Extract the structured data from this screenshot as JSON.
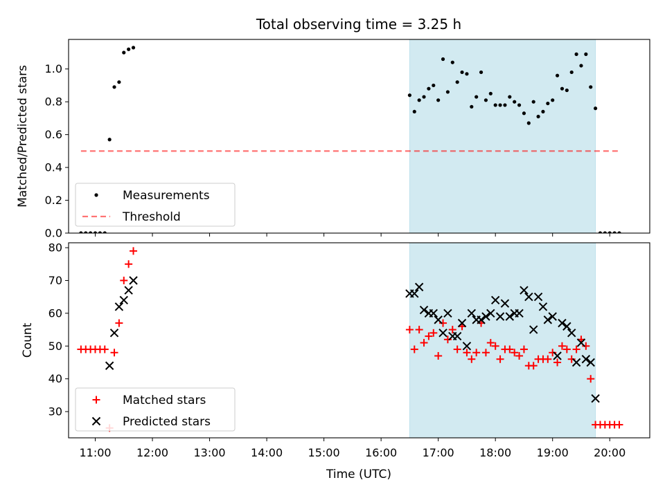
{
  "chart_data": {
    "title": "Total observing time = 3.25 h",
    "xlabel": "Time (UTC)",
    "x_ticks": [
      "11:00",
      "12:00",
      "13:00",
      "14:00",
      "15:00",
      "16:00",
      "17:00",
      "18:00",
      "19:00",
      "20:00"
    ],
    "x_range": [
      "10:32",
      "20:42"
    ],
    "observing_window": [
      "16:30",
      "19:45"
    ],
    "colors": {
      "window": "#add8e6",
      "measurement": "#000000",
      "threshold": "#ff0000",
      "matched": "#ff0000",
      "predicted": "#000000"
    },
    "panels": [
      {
        "type": "scatter",
        "ylabel": "Matched/Predicted stars",
        "ylim": [
          0,
          1.18
        ],
        "y_ticks": [
          "0.0",
          "0.2",
          "0.4",
          "0.6",
          "0.8",
          "1.0"
        ],
        "legend_placement": "lower-left",
        "series": [
          {
            "name": "Measurements",
            "marker": "dot",
            "points": [
              [
                "10:45",
                0
              ],
              [
                "10:50",
                0
              ],
              [
                "10:55",
                0
              ],
              [
                "11:00",
                0
              ],
              [
                "11:05",
                0
              ],
              [
                "11:10",
                0
              ],
              [
                "11:15",
                0.57
              ],
              [
                "11:20",
                0.89
              ],
              [
                "11:25",
                0.92
              ],
              [
                "11:30",
                1.1
              ],
              [
                "11:35",
                1.12
              ],
              [
                "11:40",
                1.13
              ],
              [
                "16:30",
                0.84
              ],
              [
                "16:35",
                0.74
              ],
              [
                "16:40",
                0.81
              ],
              [
                "16:45",
                0.83
              ],
              [
                "16:50",
                0.88
              ],
              [
                "16:55",
                0.9
              ],
              [
                "17:00",
                0.81
              ],
              [
                "17:05",
                1.06
              ],
              [
                "17:10",
                0.86
              ],
              [
                "17:15",
                1.04
              ],
              [
                "17:20",
                0.92
              ],
              [
                "17:25",
                0.98
              ],
              [
                "17:30",
                0.97
              ],
              [
                "17:35",
                0.77
              ],
              [
                "17:40",
                0.83
              ],
              [
                "17:45",
                0.98
              ],
              [
                "17:50",
                0.81
              ],
              [
                "17:55",
                0.85
              ],
              [
                "18:00",
                0.78
              ],
              [
                "18:05",
                0.78
              ],
              [
                "18:10",
                0.78
              ],
              [
                "18:15",
                0.83
              ],
              [
                "18:20",
                0.8
              ],
              [
                "18:25",
                0.78
              ],
              [
                "18:30",
                0.73
              ],
              [
                "18:35",
                0.67
              ],
              [
                "18:40",
                0.8
              ],
              [
                "18:45",
                0.71
              ],
              [
                "18:50",
                0.74
              ],
              [
                "18:55",
                0.79
              ],
              [
                "19:00",
                0.81
              ],
              [
                "19:05",
                0.96
              ],
              [
                "19:10",
                0.88
              ],
              [
                "19:15",
                0.87
              ],
              [
                "19:20",
                0.98
              ],
              [
                "19:25",
                1.09
              ],
              [
                "19:30",
                1.02
              ],
              [
                "19:35",
                1.09
              ],
              [
                "19:40",
                0.89
              ],
              [
                "19:45",
                0.76
              ],
              [
                "19:50",
                0
              ],
              [
                "19:55",
                0
              ],
              [
                "20:00",
                0
              ],
              [
                "20:05",
                0
              ],
              [
                "20:10",
                0
              ]
            ]
          },
          {
            "name": "Threshold",
            "marker": "dashed-line",
            "points": [
              [
                "10:45",
                0.5
              ],
              [
                "20:10",
                0.5
              ]
            ]
          }
        ]
      },
      {
        "type": "scatter",
        "ylabel": "Count",
        "ylim": [
          22,
          81.5
        ],
        "y_ticks": [
          "30",
          "40",
          "50",
          "60",
          "70",
          "80"
        ],
        "legend_placement": "lower-left",
        "series": [
          {
            "name": "Matched stars",
            "marker": "plus",
            "points": [
              [
                "10:45",
                49
              ],
              [
                "10:50",
                49
              ],
              [
                "10:55",
                49
              ],
              [
                "11:00",
                49
              ],
              [
                "11:05",
                49
              ],
              [
                "11:10",
                49
              ],
              [
                "11:15",
                25
              ],
              [
                "11:20",
                48
              ],
              [
                "11:25",
                57
              ],
              [
                "11:30",
                70
              ],
              [
                "11:35",
                75
              ],
              [
                "11:40",
                79
              ],
              [
                "16:30",
                55
              ],
              [
                "16:35",
                49
              ],
              [
                "16:40",
                55
              ],
              [
                "16:45",
                51
              ],
              [
                "16:50",
                53
              ],
              [
                "16:55",
                54
              ],
              [
                "17:00",
                47
              ],
              [
                "17:05",
                57
              ],
              [
                "17:10",
                52
              ],
              [
                "17:15",
                55
              ],
              [
                "17:20",
                49
              ],
              [
                "17:25",
                56
              ],
              [
                "17:30",
                48
              ],
              [
                "17:35",
                46
              ],
              [
                "17:40",
                48
              ],
              [
                "17:45",
                57
              ],
              [
                "17:50",
                48
              ],
              [
                "17:55",
                51
              ],
              [
                "18:00",
                50
              ],
              [
                "18:05",
                46
              ],
              [
                "18:10",
                49
              ],
              [
                "18:15",
                49
              ],
              [
                "18:20",
                48
              ],
              [
                "18:25",
                47
              ],
              [
                "18:30",
                49
              ],
              [
                "18:35",
                44
              ],
              [
                "18:40",
                44
              ],
              [
                "18:45",
                46
              ],
              [
                "18:50",
                46
              ],
              [
                "18:55",
                46
              ],
              [
                "19:00",
                48
              ],
              [
                "19:05",
                45
              ],
              [
                "19:10",
                50
              ],
              [
                "19:15",
                49
              ],
              [
                "19:20",
                46
              ],
              [
                "19:25",
                49
              ],
              [
                "19:30",
                52
              ],
              [
                "19:35",
                50
              ],
              [
                "19:40",
                40
              ],
              [
                "19:45",
                26
              ],
              [
                "19:50",
                26
              ],
              [
                "19:55",
                26
              ],
              [
                "20:00",
                26
              ],
              [
                "20:05",
                26
              ],
              [
                "20:10",
                26
              ]
            ]
          },
          {
            "name": "Predicted stars",
            "marker": "x",
            "points": [
              [
                "11:15",
                44
              ],
              [
                "11:20",
                54
              ],
              [
                "11:25",
                62
              ],
              [
                "11:30",
                64
              ],
              [
                "11:35",
                67
              ],
              [
                "11:40",
                70
              ],
              [
                "16:30",
                66
              ],
              [
                "16:35",
                66
              ],
              [
                "16:40",
                68
              ],
              [
                "16:45",
                61
              ],
              [
                "16:50",
                60
              ],
              [
                "16:55",
                60
              ],
              [
                "17:00",
                58
              ],
              [
                "17:05",
                54
              ],
              [
                "17:10",
                60
              ],
              [
                "17:15",
                53
              ],
              [
                "17:20",
                53
              ],
              [
                "17:25",
                57
              ],
              [
                "17:30",
                50
              ],
              [
                "17:35",
                60
              ],
              [
                "17:40",
                58
              ],
              [
                "17:45",
                58
              ],
              [
                "17:50",
                59
              ],
              [
                "17:55",
                60
              ],
              [
                "18:00",
                64
              ],
              [
                "18:05",
                59
              ],
              [
                "18:10",
                63
              ],
              [
                "18:15",
                59
              ],
              [
                "18:20",
                60
              ],
              [
                "18:25",
                60
              ],
              [
                "18:30",
                67
              ],
              [
                "18:35",
                65
              ],
              [
                "18:40",
                55
              ],
              [
                "18:45",
                65
              ],
              [
                "18:50",
                62
              ],
              [
                "18:55",
                58
              ],
              [
                "19:00",
                59
              ],
              [
                "19:05",
                47
              ],
              [
                "19:10",
                57
              ],
              [
                "19:15",
                56
              ],
              [
                "19:20",
                54
              ],
              [
                "19:25",
                45
              ],
              [
                "19:30",
                51
              ],
              [
                "19:35",
                46
              ],
              [
                "19:40",
                45
              ],
              [
                "19:45",
                34
              ]
            ]
          }
        ]
      }
    ]
  }
}
